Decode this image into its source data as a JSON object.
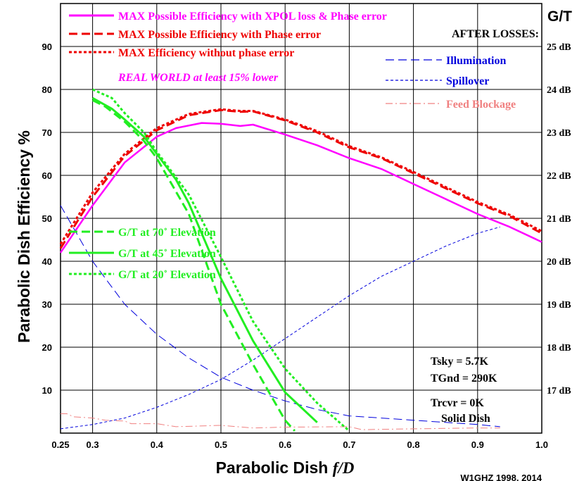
{
  "chart_data": {
    "type": "line",
    "xlabel_prefix": "Parabolic Dish ",
    "xlabel_var": "f/D",
    "ylabel": "Parabolic Dish Efficiency %",
    "y2title": "G/T",
    "xlim": [
      0.25,
      1.0
    ],
    "ylim": [
      0,
      100
    ],
    "y2lim_db": [
      16.0,
      26.0
    ],
    "x_ticks": [
      {
        "v": 0.25,
        "label": "0.25"
      },
      {
        "v": 0.3,
        "label": "0.3"
      },
      {
        "v": 0.4,
        "label": "0.4"
      },
      {
        "v": 0.5,
        "label": "0.5"
      },
      {
        "v": 0.6,
        "label": "0.6"
      },
      {
        "v": 0.7,
        "label": "0.7"
      },
      {
        "v": 0.8,
        "label": "0.8"
      },
      {
        "v": 0.9,
        "label": "0.9"
      },
      {
        "v": 1.0,
        "label": "1.0"
      }
    ],
    "y_ticks": [
      {
        "v": 10,
        "label": "10"
      },
      {
        "v": 20,
        "label": "20"
      },
      {
        "v": 30,
        "label": "30"
      },
      {
        "v": 40,
        "label": "40"
      },
      {
        "v": 50,
        "label": "50"
      },
      {
        "v": 60,
        "label": "60"
      },
      {
        "v": 70,
        "label": "70"
      },
      {
        "v": 80,
        "label": "80"
      },
      {
        "v": 90,
        "label": "90"
      }
    ],
    "y2_ticks": [
      {
        "v": 17,
        "label": "17 dB"
      },
      {
        "v": 18,
        "label": "18 dB"
      },
      {
        "v": 19,
        "label": "19 dB"
      },
      {
        "v": 20,
        "label": "20 dB"
      },
      {
        "v": 21,
        "label": "21 dB"
      },
      {
        "v": 22,
        "label": "22 dB"
      },
      {
        "v": 23,
        "label": "23 dB"
      },
      {
        "v": 24,
        "label": "24 dB"
      },
      {
        "v": 25,
        "label": "25 dB"
      }
    ],
    "grid": true,
    "series": [
      {
        "name": "MAX Possible Efficiency with XPOL loss & Phase error",
        "axis": "left",
        "color": "#ff00ff",
        "dash": "solid",
        "width": 2.5,
        "x": [
          0.25,
          0.3,
          0.35,
          0.4,
          0.43,
          0.47,
          0.5,
          0.53,
          0.55,
          0.6,
          0.65,
          0.7,
          0.75,
          0.8,
          0.85,
          0.9,
          0.95,
          1.0
        ],
        "y": [
          42,
          53,
          63,
          69,
          71,
          72.2,
          72,
          71.5,
          71.8,
          69.5,
          67,
          64,
          61.5,
          58,
          54.5,
          51,
          48,
          44.5
        ]
      },
      {
        "name": "MAX Possible Efficiency with Phase error",
        "axis": "left",
        "color": "#ee0000",
        "dash": "long",
        "width": 3,
        "x": [
          0.25,
          0.3,
          0.35,
          0.4,
          0.45,
          0.5,
          0.53,
          0.55,
          0.6,
          0.65,
          0.7,
          0.75,
          0.8,
          0.85,
          0.9,
          0.95,
          1.0
        ],
        "y": [
          43,
          55,
          64.5,
          70.5,
          74,
          75.2,
          74.8,
          74.9,
          72.8,
          70,
          66.5,
          64,
          60.5,
          57,
          53.5,
          50.5,
          46.5
        ]
      },
      {
        "name": "MAX Efficiency without phase error",
        "axis": "left",
        "color": "#ee0000",
        "dash": "short",
        "width": 3,
        "x": [
          0.25,
          0.3,
          0.35,
          0.4,
          0.45,
          0.5,
          0.53,
          0.55,
          0.6,
          0.65,
          0.7,
          0.75,
          0.8,
          0.85,
          0.9,
          0.95,
          1.0
        ],
        "y": [
          44,
          56,
          65,
          71,
          74.3,
          75.4,
          75,
          75,
          73,
          70.3,
          66.8,
          64.2,
          60.8,
          57.3,
          53.8,
          50.8,
          47
        ]
      },
      {
        "name": "Illumination",
        "axis": "left",
        "color": "#0000dd",
        "dash": "long",
        "width": 1,
        "x": [
          0.25,
          0.3,
          0.35,
          0.4,
          0.45,
          0.5,
          0.55,
          0.6,
          0.65,
          0.7,
          0.75,
          0.8,
          0.85,
          0.9,
          0.935
        ],
        "y": [
          53,
          40,
          30,
          23,
          17.5,
          13,
          10,
          7.5,
          5.5,
          4,
          3.5,
          3,
          2.5,
          2,
          1.5
        ]
      },
      {
        "name": "Spillover",
        "axis": "left",
        "color": "#0000dd",
        "dash": "short",
        "width": 1,
        "x": [
          0.25,
          0.3,
          0.35,
          0.4,
          0.45,
          0.5,
          0.55,
          0.6,
          0.65,
          0.7,
          0.75,
          0.8,
          0.85,
          0.9,
          0.935
        ],
        "y": [
          1,
          2,
          3.5,
          6,
          9,
          12.5,
          17,
          22,
          27,
          32,
          36.5,
          40,
          43.5,
          46.5,
          48
        ]
      },
      {
        "name": "Feed Blockage",
        "axis": "left",
        "color": "#f08080",
        "dash": "dashdot",
        "width": 1,
        "x": [
          0.25,
          0.26,
          0.27,
          0.3,
          0.32,
          0.35,
          0.36,
          0.4,
          0.43,
          0.5,
          0.55,
          0.6,
          0.7,
          0.72,
          0.8,
          0.9,
          0.935
        ],
        "y": [
          4.5,
          4.5,
          3.8,
          3.5,
          3,
          2.8,
          2.2,
          2.2,
          1.5,
          1.8,
          1.2,
          1.4,
          1.5,
          0.8,
          1,
          1.2,
          1.2
        ]
      },
      {
        "name": "G/T at 70˚ Elevation",
        "axis": "right",
        "color": "#22ee22",
        "dash": "long",
        "width": 3,
        "x": [
          0.3,
          0.32,
          0.35,
          0.38,
          0.4,
          0.45,
          0.5,
          0.55,
          0.6,
          0.615
        ],
        "y": [
          23.75,
          23.6,
          23.25,
          22.8,
          22.4,
          21.1,
          19.0,
          17.6,
          16.3,
          16.05
        ]
      },
      {
        "name": "G/T at 45˚ Elevation",
        "axis": "right",
        "color": "#22ee22",
        "dash": "solid",
        "width": 3,
        "x": [
          0.3,
          0.33,
          0.35,
          0.38,
          0.4,
          0.43,
          0.45,
          0.5,
          0.55,
          0.6,
          0.65
        ],
        "y": [
          23.8,
          23.55,
          23.3,
          22.9,
          22.5,
          21.9,
          21.35,
          19.6,
          18.15,
          16.95,
          16.25
        ]
      },
      {
        "name": "G/T at 20˚ Elevation",
        "axis": "right",
        "color": "#22ee22",
        "dash": "short",
        "width": 3,
        "x": [
          0.3,
          0.33,
          0.35,
          0.38,
          0.4,
          0.45,
          0.5,
          0.55,
          0.6,
          0.65,
          0.7
        ],
        "y": [
          24.0,
          23.8,
          23.45,
          23.0,
          22.55,
          21.55,
          20.1,
          18.6,
          17.5,
          16.7,
          16.05
        ]
      }
    ],
    "legend_main": [
      {
        "label": "MAX Possible Efficiency with XPOL loss & Phase error",
        "color": "#ff00ff",
        "dash": "solid"
      },
      {
        "label": "MAX Possible Efficiency with Phase error",
        "color": "#ee0000",
        "dash": "long"
      },
      {
        "label": "MAX Efficiency without phase error",
        "color": "#ee0000",
        "dash": "short"
      }
    ],
    "legend_note": "REAL WORLD at least 15% lower",
    "losses_title": "AFTER LOSSES:",
    "legend_losses": [
      {
        "label": "Illumination",
        "color": "#0000dd",
        "dash": "long"
      },
      {
        "label": "Spillover",
        "color": "#0000dd",
        "dash": "short"
      },
      {
        "label": "Feed Blockage",
        "color": "#f08080",
        "dash": "dashdot"
      }
    ],
    "legend_gt": [
      {
        "label": "G/T at 70˚ Elevation",
        "dash": "long"
      },
      {
        "label": "G/T at 45˚ Elevation",
        "dash": "solid"
      },
      {
        "label": "G/T at 20˚ Elevation",
        "dash": "short"
      }
    ],
    "annotations": [
      "Tsky = 5.7K",
      "TGnd = 290K",
      "Trcvr = 0K",
      "Solid Dish"
    ],
    "credit": "W1GHZ 1998, 2014"
  }
}
